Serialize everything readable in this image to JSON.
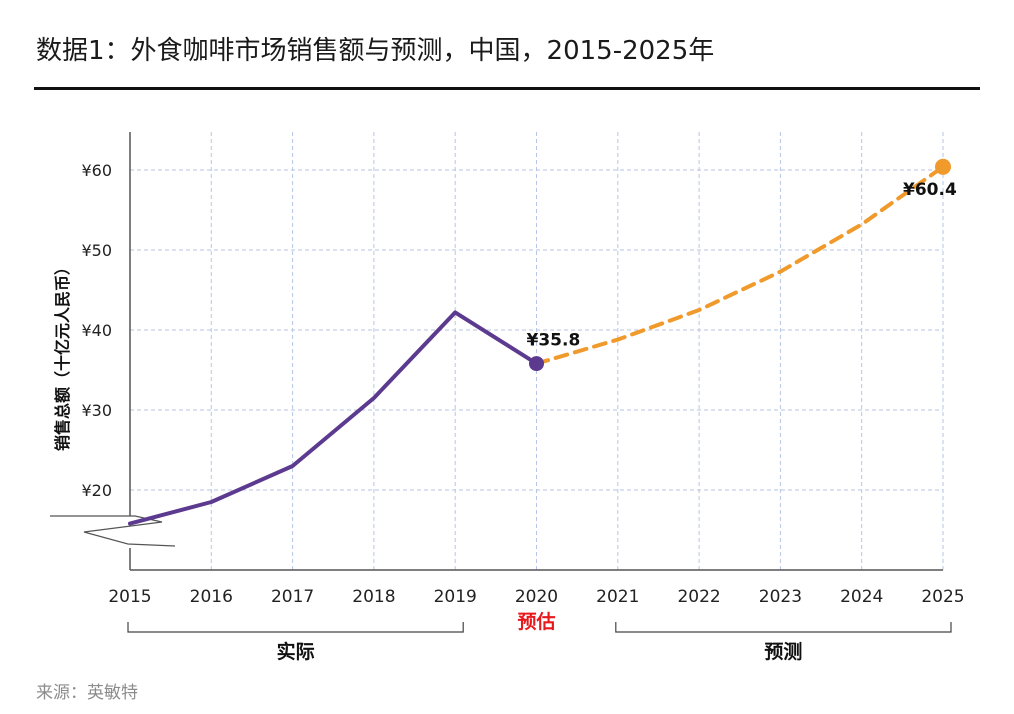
{
  "title": "数据1：外食咖啡市场销售额与预测，中国，2015-2025年",
  "source": "来源：英敏特",
  "chart_data": {
    "type": "line",
    "title": "数据1：外食咖啡市场销售额与预测，中国，2015-2025年",
    "xlabel": "",
    "ylabel": "销售总额（十亿元人民币）",
    "categories": [
      "2015",
      "2016",
      "2017",
      "2018",
      "2019",
      "2020",
      "2021",
      "2022",
      "2023",
      "2024",
      "2025"
    ],
    "y_ticks": [
      20,
      30,
      40,
      50,
      60
    ],
    "y_tick_labels": [
      "¥20",
      "¥30",
      "¥40",
      "¥50",
      "¥60"
    ],
    "ylim": [
      10,
      65
    ],
    "grid": true,
    "axis_break": true,
    "series": [
      {
        "name": "实际",
        "style": "solid",
        "color": "#5b3a8f",
        "x": [
          "2015",
          "2016",
          "2017",
          "2018",
          "2019",
          "2020"
        ],
        "values": [
          15.8,
          18.5,
          23.0,
          31.5,
          42.2,
          35.8
        ]
      },
      {
        "name": "预测",
        "style": "dashed",
        "color": "#f09a2c",
        "x": [
          "2020",
          "2021",
          "2022",
          "2023",
          "2024",
          "2025"
        ],
        "values": [
          35.8,
          38.8,
          42.5,
          47.3,
          53.2,
          60.4
        ]
      }
    ],
    "data_labels": [
      {
        "x": "2020",
        "value": 35.8,
        "text": "¥35.8"
      },
      {
        "x": "2025",
        "value": 60.4,
        "text": "¥60.4"
      }
    ],
    "estimate_label": {
      "x": "2020",
      "text": "预估",
      "color": "#e8191d"
    },
    "groups": [
      {
        "from": "2015",
        "to": "2019",
        "label": "实际"
      },
      {
        "from": "2021",
        "to": "2025",
        "label": "预测"
      }
    ]
  }
}
